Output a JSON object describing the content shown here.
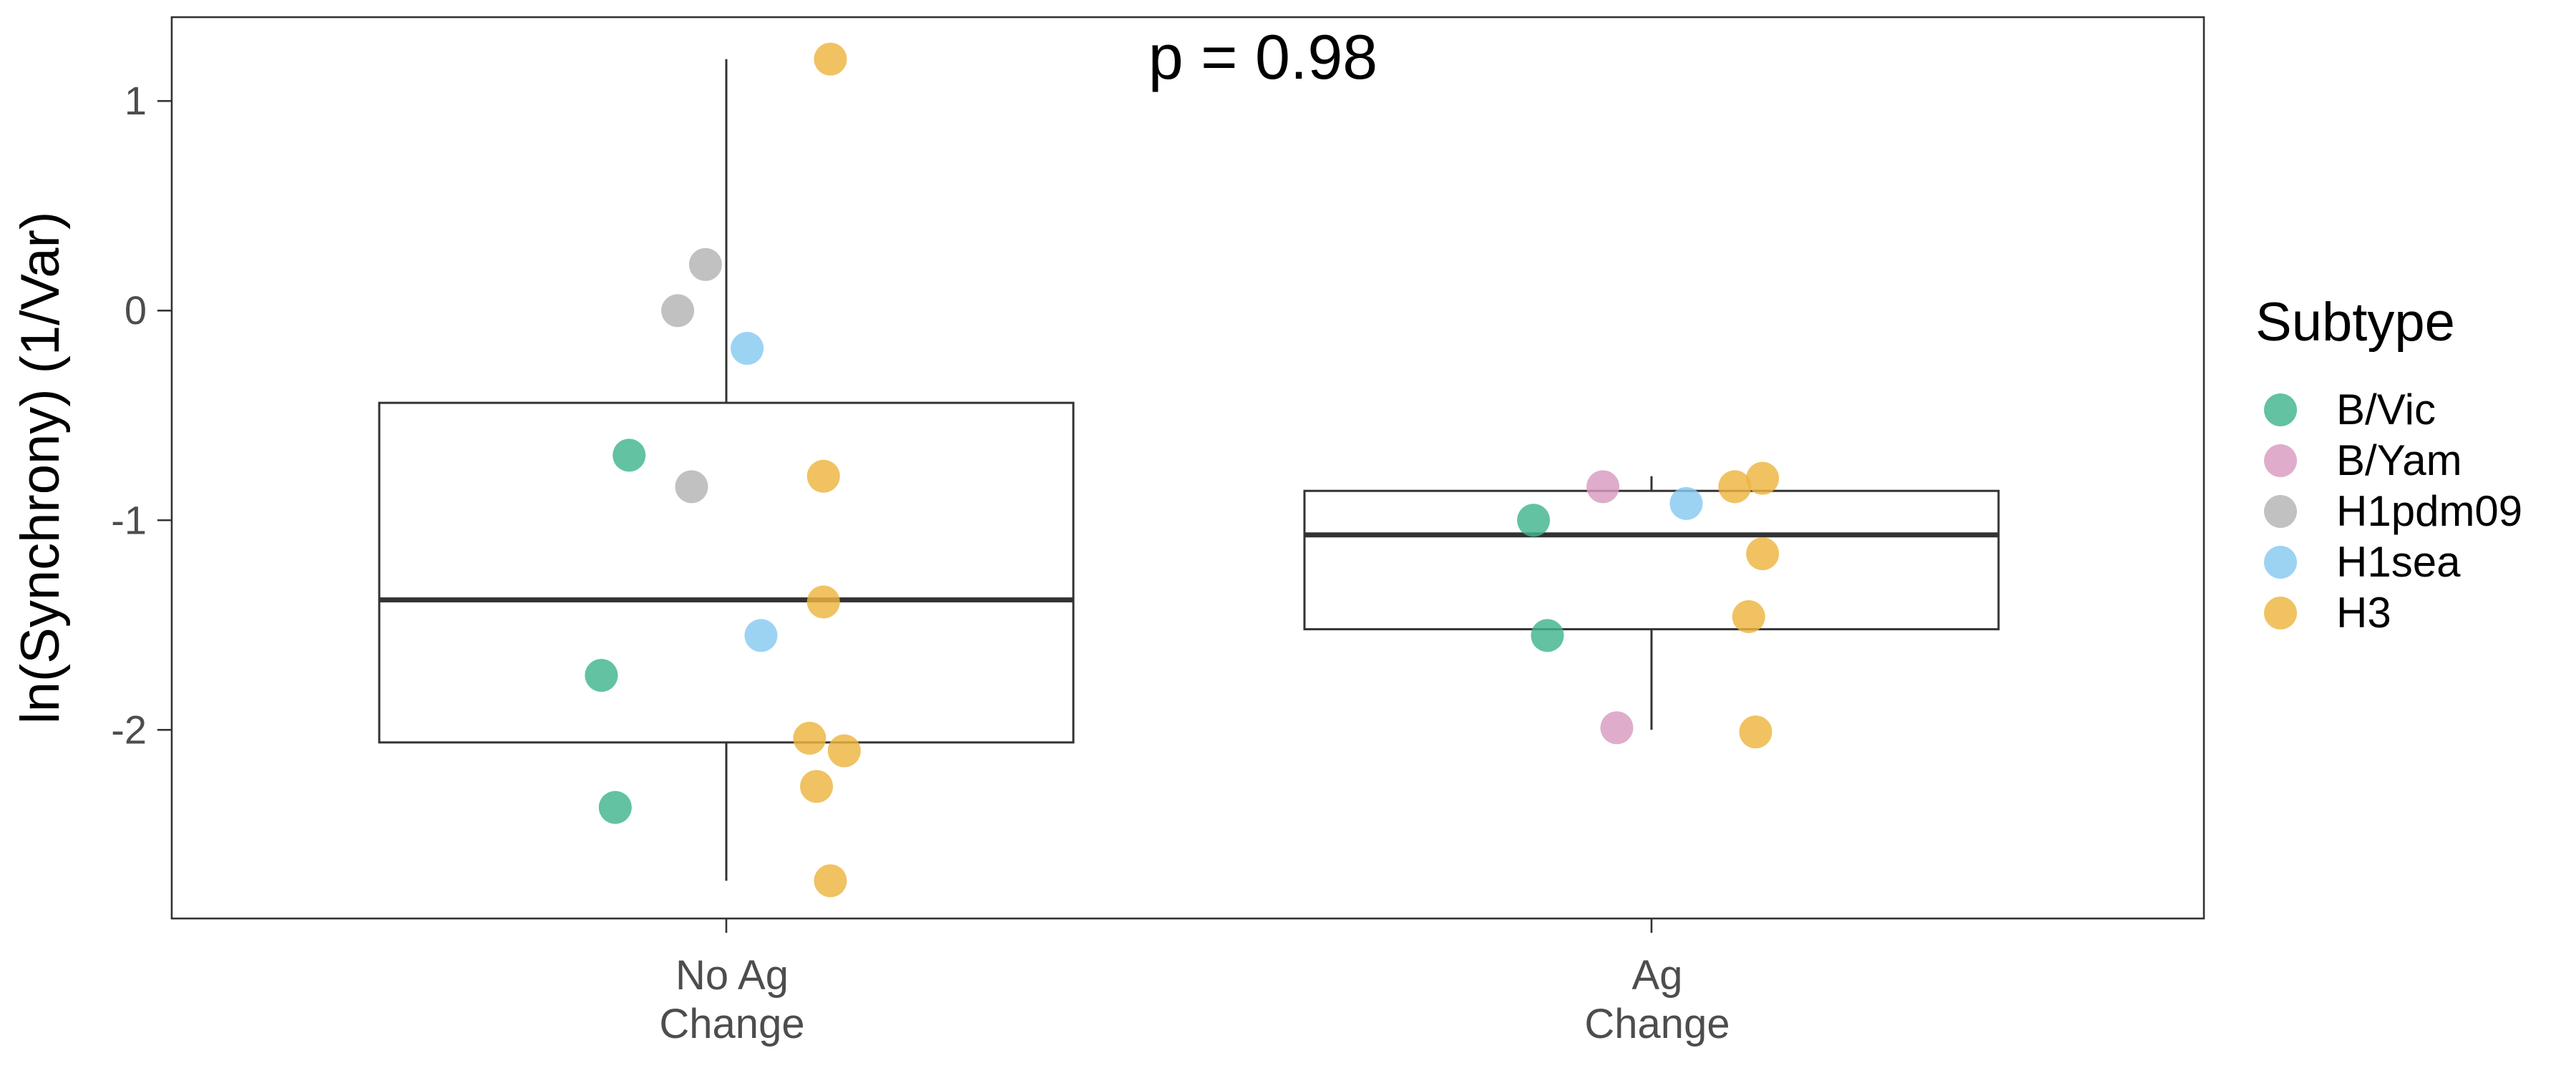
{
  "chart_data": {
    "type": "boxplot",
    "title": "",
    "xlabel": "",
    "ylabel": "ln(Synchrony) (1/Var)",
    "annotation": "p = 0.98",
    "ylim": [
      -2.9,
      1.4
    ],
    "y_ticks": [
      {
        "value": 1,
        "label": "1"
      },
      {
        "value": 0,
        "label": "0"
      },
      {
        "value": -1,
        "label": "-1"
      },
      {
        "value": -2,
        "label": "-2"
      }
    ],
    "categories": [
      {
        "id": "no_ag",
        "lines": [
          "No Ag",
          "Change"
        ]
      },
      {
        "id": "ag",
        "lines": [
          "Ag",
          "Change"
        ]
      }
    ],
    "boxes": [
      {
        "category": "no_ag",
        "whisker_low": -2.72,
        "q1": -2.06,
        "median": -1.38,
        "q3": -0.44,
        "whisker_high": 1.2
      },
      {
        "category": "ag",
        "whisker_low": -2.0,
        "q1": -1.52,
        "median": -1.07,
        "q3": -0.86,
        "whisker_high": -0.79
      }
    ],
    "legend": {
      "title": "Subtype",
      "position": "right",
      "items": [
        {
          "name": "B/Vic",
          "color": "#3fb58c"
        },
        {
          "name": "B/Yam",
          "color": "#d89bc0"
        },
        {
          "name": "H1pdm09",
          "color": "#b3b3b3"
        },
        {
          "name": "H1sea",
          "color": "#86c9f0"
        },
        {
          "name": "H3",
          "color": "#edb43f"
        }
      ]
    },
    "points": [
      {
        "category": "no_ag",
        "jitter": 0.15,
        "y": 1.2,
        "subtype": "H3"
      },
      {
        "category": "no_ag",
        "jitter": -0.03,
        "y": 0.22,
        "subtype": "H1pdm09"
      },
      {
        "category": "no_ag",
        "jitter": -0.07,
        "y": 0.0,
        "subtype": "H1pdm09"
      },
      {
        "category": "no_ag",
        "jitter": 0.03,
        "y": -0.18,
        "subtype": "H1sea"
      },
      {
        "category": "no_ag",
        "jitter": -0.14,
        "y": -0.69,
        "subtype": "B/Vic"
      },
      {
        "category": "no_ag",
        "jitter": 0.14,
        "y": -0.79,
        "subtype": "H3"
      },
      {
        "category": "no_ag",
        "jitter": -0.05,
        "y": -0.84,
        "subtype": "H1pdm09"
      },
      {
        "category": "no_ag",
        "jitter": 0.14,
        "y": -1.39,
        "subtype": "H3"
      },
      {
        "category": "no_ag",
        "jitter": 0.05,
        "y": -1.55,
        "subtype": "H1sea"
      },
      {
        "category": "no_ag",
        "jitter": -0.18,
        "y": -1.74,
        "subtype": "B/Vic"
      },
      {
        "category": "no_ag",
        "jitter": 0.12,
        "y": -2.04,
        "subtype": "H3"
      },
      {
        "category": "no_ag",
        "jitter": 0.17,
        "y": -2.1,
        "subtype": "H3"
      },
      {
        "category": "no_ag",
        "jitter": 0.13,
        "y": -2.27,
        "subtype": "H3"
      },
      {
        "category": "no_ag",
        "jitter": -0.16,
        "y": -2.37,
        "subtype": "B/Vic"
      },
      {
        "category": "no_ag",
        "jitter": 0.15,
        "y": -2.72,
        "subtype": "H3"
      },
      {
        "category": "ag",
        "jitter": -0.17,
        "y": -1.0,
        "subtype": "B/Vic"
      },
      {
        "category": "ag",
        "jitter": -0.07,
        "y": -0.84,
        "subtype": "B/Yam"
      },
      {
        "category": "ag",
        "jitter": 0.05,
        "y": -0.92,
        "subtype": "H1sea"
      },
      {
        "category": "ag",
        "jitter": 0.12,
        "y": -0.84,
        "subtype": "H3"
      },
      {
        "category": "ag",
        "jitter": 0.16,
        "y": -0.8,
        "subtype": "H3"
      },
      {
        "category": "ag",
        "jitter": 0.16,
        "y": -1.16,
        "subtype": "H3"
      },
      {
        "category": "ag",
        "jitter": 0.14,
        "y": -1.46,
        "subtype": "H3"
      },
      {
        "category": "ag",
        "jitter": -0.15,
        "y": -1.55,
        "subtype": "B/Vic"
      },
      {
        "category": "ag",
        "jitter": -0.05,
        "y": -1.99,
        "subtype": "B/Yam"
      },
      {
        "category": "ag",
        "jitter": 0.15,
        "y": -2.01,
        "subtype": "H3"
      }
    ]
  }
}
